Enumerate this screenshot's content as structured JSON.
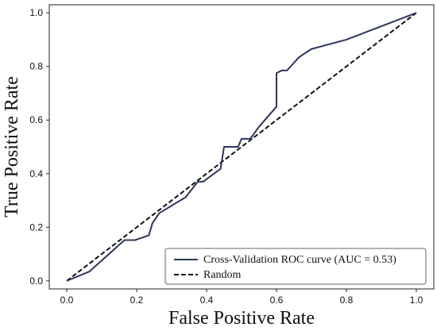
{
  "chart_data": {
    "type": "line",
    "title": "",
    "xlabel": "False Positive Rate",
    "ylabel": "True Positive Rate",
    "xlim": [
      -0.05,
      1.05
    ],
    "ylim": [
      -0.03,
      1.03
    ],
    "xticks": [
      0.0,
      0.2,
      0.4,
      0.6,
      0.8,
      1.0
    ],
    "yticks": [
      0.0,
      0.2,
      0.4,
      0.6,
      0.8,
      1.0
    ],
    "xtick_labels": [
      "0.0",
      "0.2",
      "0.4",
      "0.6",
      "0.8",
      "1.0"
    ],
    "ytick_labels": [
      "0.0",
      "0.2",
      "0.4",
      "0.6",
      "0.8",
      "1.0"
    ],
    "grid": false,
    "legend_position": "lower-right",
    "series": [
      {
        "name": "Cross-Validation ROC curve (AUC = 0.53)",
        "color": "#2c3659",
        "style": "solid",
        "x": [
          0.0,
          0.065,
          0.165,
          0.195,
          0.235,
          0.245,
          0.265,
          0.34,
          0.375,
          0.39,
          0.44,
          0.45,
          0.47,
          0.49,
          0.5,
          0.51,
          0.525,
          0.55,
          0.6,
          0.6,
          0.615,
          0.63,
          0.665,
          0.7,
          0.8,
          1.0
        ],
        "y": [
          0.0,
          0.035,
          0.152,
          0.152,
          0.17,
          0.215,
          0.253,
          0.312,
          0.37,
          0.37,
          0.418,
          0.5,
          0.5,
          0.5,
          0.53,
          0.53,
          0.53,
          0.575,
          0.65,
          0.775,
          0.785,
          0.785,
          0.835,
          0.865,
          0.9,
          1.0
        ]
      },
      {
        "name": "Random",
        "color": "#111111",
        "style": "dashed",
        "x": [
          0.0,
          1.0
        ],
        "y": [
          0.0,
          1.0
        ]
      }
    ]
  }
}
